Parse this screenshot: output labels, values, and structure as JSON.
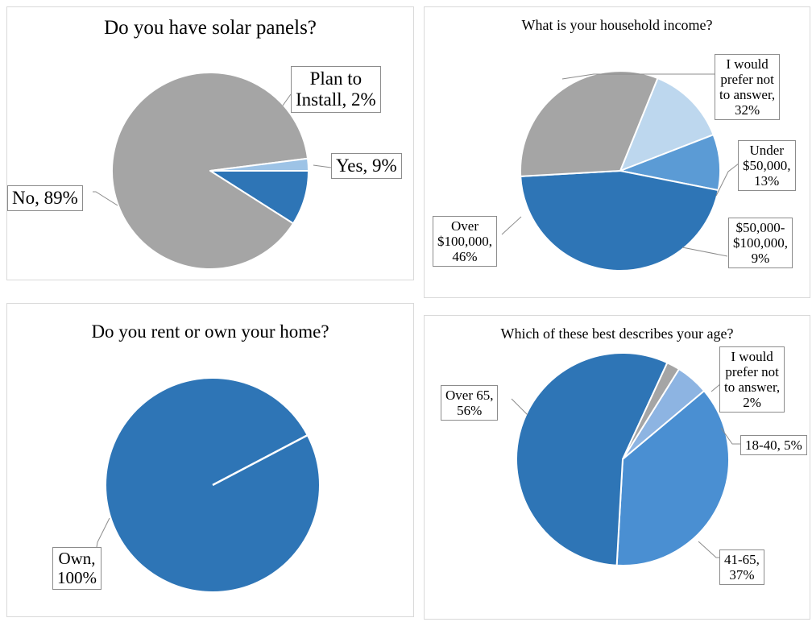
{
  "colors": {
    "gray": "#a5a5a5",
    "blue_dark": "#2e75b6",
    "blue_mid": "#5b9bd5",
    "blue_light": "#bdd7ee",
    "blue_pale": "#9dc3e6",
    "blue_41_65": "#4a8fd2",
    "blue_18_40": "#8db4e2"
  },
  "chart_data": [
    {
      "type": "pie",
      "title": "Do you have solar panels?",
      "series": [
        {
          "name": "",
          "slices": [
            {
              "label": "Yes",
              "value_text": "9%",
              "value": 9,
              "color": "#2e75b6"
            },
            {
              "label": "No",
              "value_text": "89%",
              "value": 89,
              "color": "#a5a5a5"
            },
            {
              "label": "Plan to Install",
              "value_text": "2%",
              "value": 2,
              "color": "#9dc3e6"
            }
          ]
        }
      ],
      "label_lines": {
        "yes": [
          "Yes, 9%"
        ],
        "no": [
          "No, 89%"
        ],
        "plan": [
          "Plan to",
          "Install, 2%"
        ]
      }
    },
    {
      "type": "pie",
      "title": "What is your household income?",
      "series": [
        {
          "name": "",
          "slices": [
            {
              "label": "Under $50,000",
              "value_text": "13%",
              "value": 13,
              "color": "#bdd7ee"
            },
            {
              "label": "$50,000-$100,000",
              "value_text": "9%",
              "value": 9,
              "color": "#5b9bd5"
            },
            {
              "label": "Over $100,000",
              "value_text": "46%",
              "value": 46,
              "color": "#2e75b6"
            },
            {
              "label": "I would prefer not to answer",
              "value_text": "32%",
              "value": 32,
              "color": "#a5a5a5"
            }
          ]
        }
      ],
      "label_lines": {
        "under50": [
          "Under",
          "$50,000,",
          "13%"
        ],
        "mid": [
          "$50,000-",
          "$100,000,",
          "9%"
        ],
        "over100": [
          "Over",
          "$100,000,",
          "46%"
        ],
        "prefer": [
          "I would",
          "prefer not",
          "to answer,",
          "32%"
        ]
      }
    },
    {
      "type": "pie",
      "title": "Do you rent or own your home?",
      "series": [
        {
          "name": "",
          "slices": [
            {
              "label": "Own",
              "value_text": "100%",
              "value": 100,
              "color": "#2e75b6"
            }
          ]
        }
      ],
      "label_lines": {
        "own": [
          "Own,",
          "100%"
        ]
      }
    },
    {
      "type": "pie",
      "title": "Which of these best describes your age?",
      "series": [
        {
          "name": "",
          "slices": [
            {
              "label": "18-40",
              "value_text": "5%",
              "value": 5,
              "color": "#8db4e2"
            },
            {
              "label": "41-65",
              "value_text": "37%",
              "value": 37,
              "color": "#4a8fd2"
            },
            {
              "label": "Over 65",
              "value_text": "56%",
              "value": 56,
              "color": "#2e75b6"
            },
            {
              "label": "I would prefer not to answer",
              "value_text": "2%",
              "value": 2,
              "color": "#a5a5a5"
            }
          ]
        }
      ],
      "label_lines": {
        "a18": [
          "18-40, 5%"
        ],
        "a41": [
          "41-65,",
          "37%"
        ],
        "over65": [
          "Over 65,",
          "56%"
        ],
        "prefer": [
          "I would",
          "prefer not",
          "to answer,",
          "2%"
        ]
      }
    }
  ]
}
